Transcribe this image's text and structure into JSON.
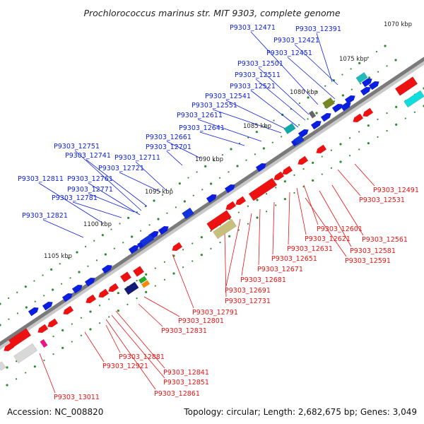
{
  "title": "Prochlorococcus marinus str. MIT 9303, complete genome",
  "accession": "Accession: NC_008820",
  "topology": "Topology: circular; Length: 2,682,675 bp; Genes: 3,049",
  "colors": {
    "forward_strand": "#0b1ee0",
    "reverse_strand": "#ee1111",
    "backbone": "#8a8a8a",
    "ticks": "#2e8b2e",
    "rna_feature": "#c8c07a",
    "misc_feature": "#d8d8d8"
  },
  "scale_labels": [
    "1070 kbp",
    "1075 kbp",
    "1080 kbp",
    "1085 kbp",
    "1090 kbp",
    "1095 kbp",
    "1100 kbp",
    "1105 kbp"
  ],
  "labels_upper": [
    "P9303_12391",
    "P9303_12421",
    "P9303_12451",
    "P9303_12471",
    "P9303_12501",
    "P9303_12511",
    "P9303_12521",
    "P9303_12541",
    "P9303_12551",
    "P9303_12611",
    "P9303_12641",
    "P9303_12661",
    "P9303_12701",
    "P9303_12711",
    "P9303_12721",
    "P9303_12741",
    "P9303_12751",
    "P9303_12761",
    "P9303_12771",
    "P9303_12781",
    "P9303_12811",
    "P9303_12821"
  ],
  "labels_lower": [
    "P9303_12491",
    "P9303_12531",
    "P9303_12561",
    "P9303_12581",
    "P9303_12591",
    "P9303_12601",
    "P9303_12621",
    "P9303_12631",
    "P9303_12651",
    "P9303_12671",
    "P9303_12681",
    "P9303_12691",
    "P9303_12731",
    "P9303_12791",
    "P9303_12801",
    "P9303_12831",
    "P9303_12841",
    "P9303_12851",
    "P9303_12861",
    "P9303_12881",
    "P9303_12921",
    "P9303_13011"
  ]
}
